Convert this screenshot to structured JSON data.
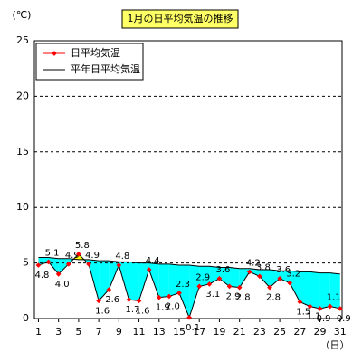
{
  "chart_data": {
    "type": "line",
    "title": "1月の日平均気温の推移",
    "y_label": "(℃)",
    "x_label": "（日）",
    "x": [
      1,
      2,
      3,
      4,
      5,
      6,
      7,
      8,
      9,
      10,
      11,
      12,
      13,
      14,
      15,
      16,
      17,
      18,
      19,
      20,
      21,
      22,
      23,
      24,
      25,
      26,
      27,
      28,
      29,
      30,
      31
    ],
    "xlim": [
      0.6,
      31.2
    ],
    "xticks": [
      1,
      3,
      5,
      7,
      9,
      11,
      13,
      15,
      17,
      19,
      21,
      23,
      25,
      27,
      29,
      31
    ],
    "ylim": [
      0,
      25
    ],
    "yticks": [
      0,
      5,
      10,
      15,
      20,
      25
    ],
    "grid": true,
    "legend": "upper left",
    "fill_below": "#00ffff",
    "fill_above": "#ffff00",
    "series": [
      {
        "name": "日平均気温",
        "color": "#ff0000",
        "line_color": "#000000",
        "values": [
          4.8,
          5.1,
          4.0,
          4.9,
          5.8,
          4.9,
          1.6,
          2.6,
          4.8,
          1.7,
          1.6,
          4.4,
          1.9,
          2.0,
          2.3,
          0.1,
          2.9,
          3.1,
          3.6,
          2.9,
          2.8,
          4.2,
          3.8,
          2.8,
          3.6,
          3.2,
          1.5,
          1.1,
          0.9,
          1.1,
          0.9
        ],
        "value_labels": [
          "4.8",
          "5.1",
          "4.0",
          "4.9",
          "5.8",
          "4.9",
          "1.6",
          "2.6",
          "4.8",
          "1.7",
          "1.6",
          "4.4",
          "1.9",
          "2.0",
          "2.3",
          "0.1",
          "2.9",
          "3.1",
          "3.6",
          "2.9",
          "2.8",
          "4.2",
          "3.8",
          "2.8",
          "3.6",
          "3.2",
          "1.5",
          "1.1",
          "0.9",
          "1.1",
          "0.9"
        ]
      },
      {
        "name": "平年日平均気温",
        "color": "#000000",
        "values": [
          5.5,
          5.5,
          5.4,
          5.4,
          5.3,
          5.3,
          5.2,
          5.2,
          5.1,
          5.1,
          5.0,
          5.0,
          4.9,
          4.9,
          4.8,
          4.8,
          4.7,
          4.7,
          4.6,
          4.6,
          4.5,
          4.5,
          4.4,
          4.4,
          4.3,
          4.3,
          4.2,
          4.2,
          4.1,
          4.1,
          4.0
        ]
      }
    ]
  }
}
